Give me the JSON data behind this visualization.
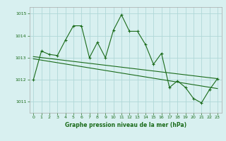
{
  "title": "Graphe pression niveau de la mer (hPa)",
  "background_color": "#d8f0f0",
  "grid_color": "#b0d8d8",
  "line_color": "#1a6b1a",
  "xlim": [
    -0.5,
    23.5
  ],
  "ylim": [
    1010.5,
    1015.3
  ],
  "yticks": [
    1011,
    1012,
    1013,
    1014,
    1015
  ],
  "xticks": [
    0,
    1,
    2,
    3,
    4,
    5,
    6,
    7,
    8,
    9,
    10,
    11,
    12,
    13,
    14,
    15,
    16,
    17,
    18,
    19,
    20,
    21,
    22,
    23
  ],
  "series1_x": [
    0,
    1,
    2,
    3,
    4,
    5,
    6,
    7,
    8,
    9,
    10,
    11,
    12,
    13,
    14,
    15,
    16,
    17,
    18,
    19,
    20,
    21,
    22,
    23
  ],
  "series1_y": [
    1012.0,
    1013.3,
    1013.15,
    1013.1,
    1013.8,
    1014.45,
    1014.45,
    1013.0,
    1013.7,
    1013.0,
    1014.25,
    1014.95,
    1014.2,
    1014.2,
    1013.6,
    1012.7,
    1013.2,
    1011.65,
    1011.95,
    1011.65,
    1011.15,
    1010.95,
    1011.55,
    1012.05
  ],
  "series2_x": [
    0,
    23
  ],
  "series2_y": [
    1013.05,
    1012.05
  ],
  "series3_x": [
    0,
    23
  ],
  "series3_y": [
    1012.95,
    1011.6
  ]
}
